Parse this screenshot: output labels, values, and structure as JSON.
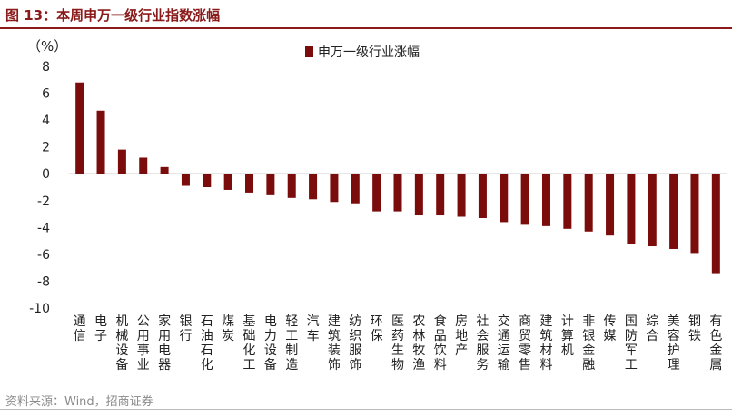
{
  "figure": {
    "title": "图 13：本周申万一级行业指数涨幅",
    "source": "资料来源：Wind，招商证券"
  },
  "chart_data": {
    "type": "bar",
    "unit_label": "（%）",
    "legend": "top-center",
    "grid": false,
    "ylim": [
      -10,
      8
    ],
    "yticks": [
      8,
      6,
      4,
      2,
      0,
      -2,
      -4,
      -6,
      -8,
      -10
    ],
    "bar_color": "#7B0C0C",
    "series": [
      {
        "name": "申万一级行业涨幅",
        "values": [
          6.8,
          4.7,
          1.8,
          1.2,
          0.5,
          -0.9,
          -1.0,
          -1.2,
          -1.4,
          -1.6,
          -1.8,
          -1.9,
          -2.1,
          -2.2,
          -2.8,
          -2.8,
          -3.1,
          -3.1,
          -3.2,
          -3.3,
          -3.6,
          -3.8,
          -3.9,
          -4.1,
          -4.3,
          -4.6,
          -5.2,
          -5.4,
          -5.6,
          -5.9,
          -7.4
        ]
      }
    ],
    "categories": [
      "通信",
      "电子",
      "机械设备",
      "公用事业",
      "家用电器",
      "银行",
      "石油石化",
      "煤炭",
      "基础化工",
      "电力设备",
      "轻工制造",
      "汽车",
      "建筑装饰",
      "纺织服饰",
      "环保",
      "医药生物",
      "农林牧渔",
      "食品饮料",
      "房地产",
      "社会服务",
      "交通运输",
      "商贸零售",
      "建筑材料",
      "计算机",
      "非银金融",
      "传媒",
      "国防军工",
      "综合",
      "美容护理",
      "钢铁",
      "有色金属"
    ]
  }
}
